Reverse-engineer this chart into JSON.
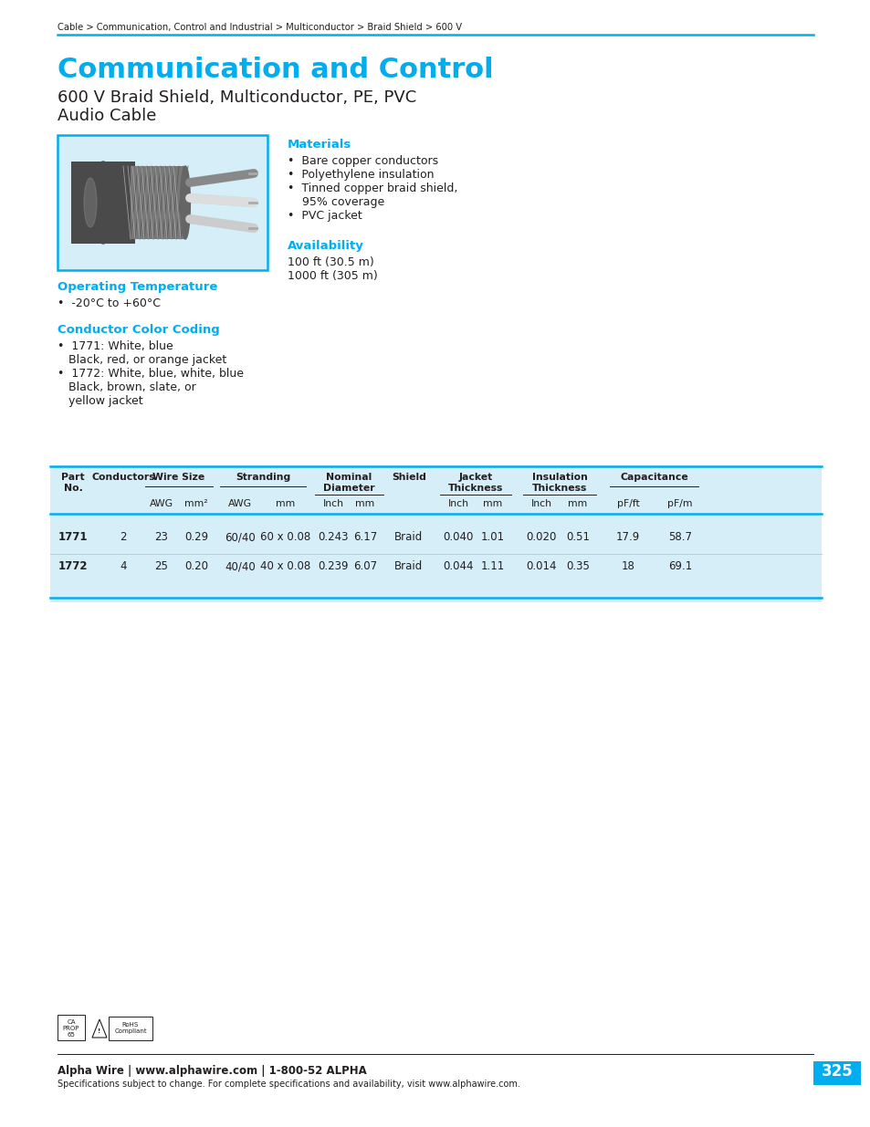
{
  "breadcrumb": "Cable > Communication, Control and Industrial > Multiconductor > Braid Shield > 600 V",
  "main_title": "Communication and Control",
  "subtitle1": "600 V Braid Shield, Multiconductor, PE, PVC",
  "subtitle2": "Audio Cable",
  "cyan_color": "#00AEEF",
  "dark_color": "#231f20",
  "light_blue_bg": "#d6eef8",
  "section_materials": "Materials",
  "materials": [
    "Bare copper conductors",
    "Polyethylene insulation",
    "Tinned copper braid shield,",
    "  95% coverage",
    "PVC jacket"
  ],
  "section_availability": "Availability",
  "availability": [
    "100 ft (30.5 m)",
    "1000 ft (305 m)"
  ],
  "section_op_temp": "Operating Temperature",
  "op_temp": "-20°C to +60°C",
  "section_color_coding": "Conductor Color Coding",
  "color_coding_lines": [
    "•  1771: White, blue",
    "   Black, red, or orange jacket",
    "•  1772: White, blue, white, blue",
    "   Black, brown, slate, or",
    "   yellow jacket"
  ],
  "table_data": [
    [
      "1771",
      "2",
      "23",
      "0.29",
      "60/40",
      "60 x 0.08",
      "0.243",
      "6.17",
      "Braid",
      "0.040",
      "1.01",
      "0.020",
      "0.51",
      "17.9",
      "58.7"
    ],
    [
      "1772",
      "4",
      "25",
      "0.20",
      "40/40",
      "40 x 0.08",
      "0.239",
      "6.07",
      "Braid",
      "0.044",
      "1.11",
      "0.014",
      "0.35",
      "18",
      "69.1"
    ]
  ],
  "footer_company": "Alpha Wire | www.alphawire.com | 1-800-52 ALPHA",
  "footer_note": "Specifications subject to change. For complete specifications and availability, visit www.alphawire.com.",
  "page_num": "325"
}
